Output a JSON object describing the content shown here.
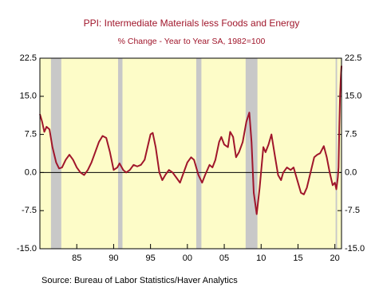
{
  "chart_data": {
    "type": "line",
    "title": "PPI: Intermediate Materials less Foods and Energy",
    "subtitle": "% Change - Year to Year    SA, 1982=100",
    "source": "Source:  Bureau of Labor Statistics/Haver Analytics",
    "color": "#a0162b",
    "background": "#fdfcc8",
    "shade_color": "#c8c8c8",
    "shaded_periods": [
      [
        1981.5,
        1982.9
      ],
      [
        1990.6,
        1991.2
      ],
      [
        2001.2,
        2001.9
      ],
      [
        2007.9,
        2009.5
      ],
      [
        2020.1,
        2020.3
      ]
    ],
    "x": [
      1980.0,
      1980.3,
      1980.6,
      1980.9,
      1981.3,
      1981.7,
      1982.2,
      1982.6,
      1983.0,
      1983.5,
      1984.0,
      1984.5,
      1985.0,
      1985.5,
      1986.0,
      1986.5,
      1987.0,
      1987.5,
      1988.0,
      1988.5,
      1989.0,
      1989.5,
      1990.0,
      1990.5,
      1990.8,
      1991.3,
      1991.7,
      1992.2,
      1992.7,
      1993.2,
      1993.7,
      1994.2,
      1994.6,
      1995.0,
      1995.3,
      1995.7,
      1996.2,
      1996.6,
      1997.0,
      1997.5,
      1998.0,
      1998.5,
      1999.0,
      1999.5,
      2000.0,
      2000.5,
      2000.9,
      2001.5,
      2002.0,
      2002.4,
      2003.0,
      2003.4,
      2003.8,
      2004.3,
      2004.6,
      2005.0,
      2005.5,
      2005.8,
      2006.2,
      2006.6,
      2007.0,
      2007.5,
      2008.0,
      2008.4,
      2008.7,
      2009.0,
      2009.4,
      2009.8,
      2010.3,
      2010.6,
      2011.0,
      2011.4,
      2011.9,
      2012.3,
      2012.7,
      2013.0,
      2013.5,
      2014.0,
      2014.4,
      2014.9,
      2015.4,
      2015.8,
      2016.2,
      2016.7,
      2017.2,
      2017.6,
      2018.0,
      2018.5,
      2018.9,
      2019.3,
      2019.7,
      2020.0,
      2020.2,
      2020.4,
      2020.5,
      2020.6,
      2020.7,
      2020.8,
      2020.9
    ],
    "values": [
      11.5,
      10,
      8,
      9,
      8.5,
      5,
      2,
      0.8,
      1,
      2.5,
      3.5,
      2.5,
      1,
      0,
      -0.5,
      0.5,
      2,
      4,
      6,
      7.2,
      6.8,
      4,
      0.5,
      1,
      1.8,
      0.5,
      0,
      0.5,
      1.5,
      1.2,
      1.5,
      2.5,
      5,
      7.5,
      7.8,
      5,
      0,
      -1.5,
      -0.5,
      0.5,
      0,
      -1,
      -2,
      0,
      2,
      3,
      2.5,
      -0.5,
      -2,
      -0.5,
      1.5,
      1,
      2.5,
      6,
      7,
      5.5,
      5,
      8,
      7,
      3,
      4,
      6,
      10,
      11.8,
      6,
      -4,
      -8.2,
      -3,
      5,
      4,
      5.5,
      7.5,
      3,
      -0.5,
      -1.5,
      0,
      1,
      0.5,
      1,
      -1.5,
      -4,
      -4.3,
      -3,
      0,
      3,
      3.5,
      3.8,
      5.2,
      3,
      0,
      -2.5,
      -2,
      -3.3,
      -1,
      1,
      9,
      15,
      18.5,
      21
    ],
    "xlim": [
      1980,
      2020.9
    ],
    "xticks": [
      {
        "value": 1985,
        "label": "85"
      },
      {
        "value": 1990,
        "label": "90"
      },
      {
        "value": 1995,
        "label": "95"
      },
      {
        "value": 2000,
        "label": "00"
      },
      {
        "value": 2005,
        "label": "05"
      },
      {
        "value": 2010,
        "label": "10"
      },
      {
        "value": 2015,
        "label": "15"
      },
      {
        "value": 2020,
        "label": "20"
      }
    ],
    "ylim": [
      -15,
      22.5
    ],
    "yticks": [
      {
        "value": -15,
        "label": "-15.0"
      },
      -7.5,
      {
        "value": 0,
        "label": "0.0"
      },
      7.5,
      {
        "value": 15,
        "label": "15.0"
      },
      22.5
    ],
    "y2lim": [
      -15,
      22.5
    ],
    "y2ticks": [
      {
        "value": -15,
        "label": "-15.0"
      },
      -7.5,
      {
        "value": 0,
        "label": "0.0"
      },
      7.5,
      {
        "value": 15,
        "label": "15.0"
      },
      22.5
    ],
    "zero_line": true
  }
}
